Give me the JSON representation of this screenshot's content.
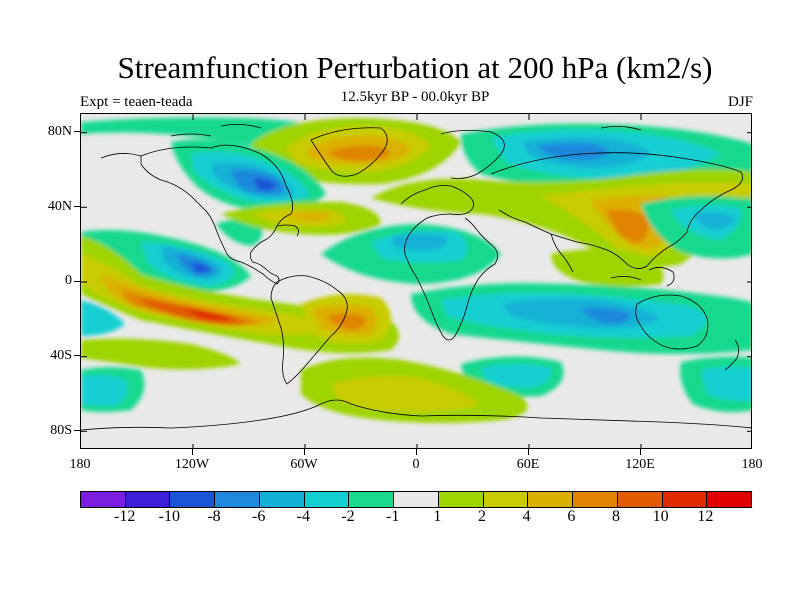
{
  "title": "Streamfunction Perturbation at 200 hPa (km2/s)",
  "subtitle": "12.5kyr BP - 00.0kyr BP",
  "left_label": "Expt = teaen-teada",
  "right_label": "DJF",
  "lat_labels": [
    "80N",
    "40N",
    "0",
    "40S",
    "80S"
  ],
  "lon_labels": [
    "180",
    "120W",
    "60W",
    "0",
    "60E",
    "120E",
    "180"
  ],
  "colorbar": {
    "colors": [
      "#7b1ee0",
      "#3a1ed8",
      "#1a55d8",
      "#1e88dc",
      "#12b0d6",
      "#12cfd2",
      "#18d98e",
      "#e9e9e9",
      "#9ed400",
      "#c8cc00",
      "#dcb000",
      "#e08400",
      "#e05a00",
      "#e02c00",
      "#e00000"
    ],
    "labels": [
      "-12",
      "-10",
      "-8",
      "-6",
      "-4",
      "-2",
      "-1",
      "1",
      "2",
      "4",
      "6",
      "8",
      "10",
      "12"
    ]
  },
  "palette": {
    "neg1": "#18d98e",
    "neg2": "#12cfd2",
    "neg3": "#12b0d6",
    "neg4": "#1e88dc",
    "neg5": "#1a55d8",
    "pos1": "#9ed400",
    "pos2": "#c8cc00",
    "pos3": "#dcb000",
    "pos4": "#e08400",
    "pos5": "#e05a00",
    "pos6": "#e02c00",
    "zero": "#e9e9e9"
  }
}
